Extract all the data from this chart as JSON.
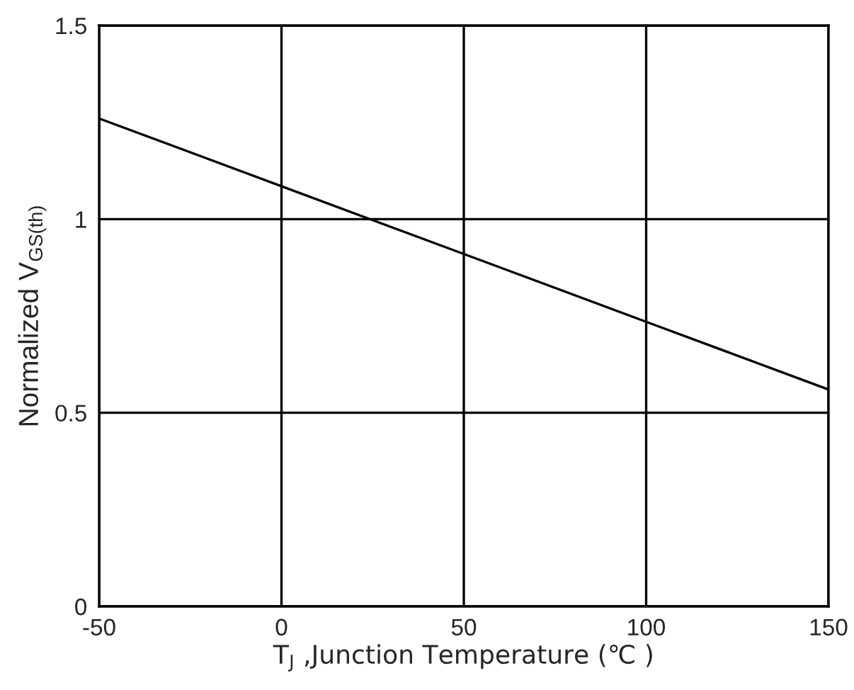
{
  "chart_data": {
    "type": "line",
    "xlabel": "T$_{J}$ ,Junction Temperature (℃ )",
    "ylabel": "Normalized V$_{GS(th)}$",
    "x": [
      -50,
      0,
      50,
      100,
      150
    ],
    "series": [
      {
        "color": "#000000",
        "values": [
          1.26,
          1.085,
          0.91,
          0.735,
          0.56
        ]
      }
    ],
    "xlim": [
      -50,
      150
    ],
    "xticks": [
      -50,
      0,
      50,
      100,
      150
    ],
    "ylim": [
      0,
      1.5
    ],
    "yticks": [
      0,
      0.5,
      1,
      1.5
    ],
    "grid": true,
    "legend": false,
    "marker": "none",
    "line_style": "solid"
  }
}
